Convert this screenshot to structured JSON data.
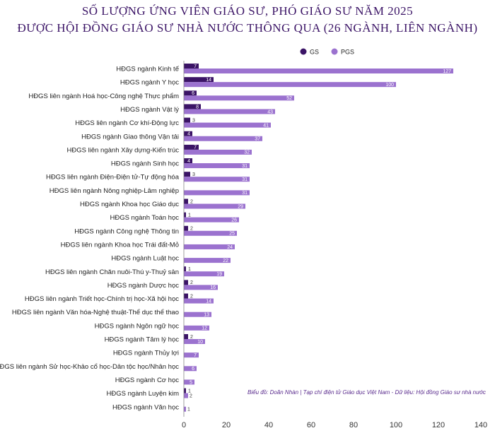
{
  "chart_data": {
    "type": "bar",
    "orientation": "horizontal",
    "title_line1": "SỐ LƯỢNG ỨNG VIÊN GIÁO SƯ, PHÓ GIÁO SƯ NĂM 2025",
    "title_line2": "ĐƯỢC HỘI ĐỒNG GIÁO SƯ NHÀ NƯỚC THÔNG QUA (26 NGÀNH, LIÊN NGÀNH)",
    "categories": [
      "HĐGS ngành Kinh tế",
      "HĐGS ngành Y học",
      "HĐGS liên ngành Hoá học-Công nghệ Thực phẩm",
      "HĐGS ngành Vật lý",
      "HĐGS liên ngành Cơ khí-Động lực",
      "HĐGS ngành Giao thông Vận tải",
      "HĐGS liên ngành Xây dựng-Kiến trúc",
      "HĐGS ngành Sinh học",
      "HĐGS liên ngành Điện-Điện tử-Tự động hóa",
      "HĐGS liên ngành Nông nghiệp-Lâm nghiệp",
      "HĐGS ngành Khoa học Giáo dục",
      "HĐGS ngành Toán học",
      "HĐGS ngành Công nghệ Thông tin",
      "HĐGS liên ngành Khoa học Trái đất-Mỏ",
      "HĐGS ngành Luật học",
      "HĐGS liên ngành Chăn nuôi-Thú y-Thuỷ sản",
      "HĐGS ngành Dược học",
      "HĐGS liên ngành Triết học-Chính trị học-Xã hội học",
      "HĐGS liên ngành Văn hóa-Nghệ thuật-Thể dục thể thao",
      "HĐGS ngành Ngôn ngữ học",
      "HĐGS ngành Tâm lý học",
      "HĐGS ngành Thủy lợi",
      "HĐGS liên ngành Sử học-Khảo cổ học-Dân tộc học/Nhân học",
      "HĐGS ngành Cơ học",
      "HĐGS ngành Luyện kim",
      "HĐGS ngành Văn học"
    ],
    "series": [
      {
        "name": "GS",
        "color": "#3b1466",
        "values": [
          7,
          14,
          6,
          8,
          3,
          4,
          7,
          4,
          3,
          0,
          2,
          1,
          2,
          0,
          0,
          1,
          2,
          2,
          0,
          0,
          2,
          0,
          0,
          0,
          1,
          0
        ],
        "labels": [
          "7",
          "14",
          "6",
          "8",
          "3",
          "4",
          "7",
          "4",
          "3",
          "-",
          "2",
          "1",
          "2",
          "-",
          "-",
          "1",
          "2",
          "2",
          "-",
          "-",
          "2",
          "-",
          "-",
          "-",
          "1",
          "-"
        ]
      },
      {
        "name": "PGS",
        "color": "#9b72cf",
        "values": [
          127,
          100,
          52,
          43,
          41,
          37,
          32,
          31,
          31,
          31,
          29,
          26,
          25,
          24,
          22,
          19,
          16,
          14,
          13,
          12,
          10,
          7,
          6,
          5,
          2,
          1
        ],
        "labels": [
          "127",
          "100",
          "52",
          "43",
          "41",
          "37",
          "32",
          "31",
          "31",
          "31",
          "29",
          "26",
          "25",
          "24",
          "22",
          "19",
          "16",
          "14",
          "13",
          "12",
          "10",
          "7",
          "6",
          "5",
          "2",
          "1"
        ]
      }
    ],
    "xlim": [
      0,
      140
    ],
    "xticks": [
      0,
      20,
      40,
      60,
      80,
      100,
      120,
      140
    ],
    "legend_position": "top-right",
    "source_note": "Biểu đồ: Doãn Nhàn | Tạp chí điện tử Giáo dục Việt Nam  -  Dữ liệu: Hội đồng Giáo sư nhà nước"
  }
}
